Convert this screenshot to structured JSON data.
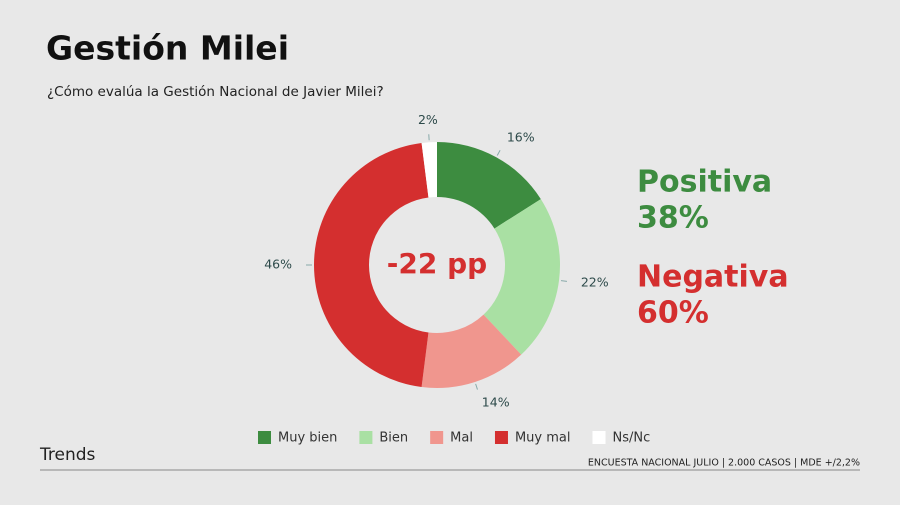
{
  "chart_data": {
    "type": "donut",
    "title": "Gestión Milei",
    "subtitle": "¿Cómo evalúa la Gestión Nacional de Javier Milei?",
    "categories": [
      "Muy bien",
      "Bien",
      "Mal",
      "Muy mal",
      "Ns/Nc"
    ],
    "values": [
      16,
      22,
      14,
      46,
      2
    ],
    "value_labels": [
      "16%",
      "22%",
      "14%",
      "46%",
      "2%"
    ],
    "colors": [
      "#3d8c40",
      "#a9e0a3",
      "#f0968e",
      "#d42f2f",
      "#ffffff"
    ],
    "center_label": "-22 pp",
    "annotations": [
      {
        "text": "Positiva",
        "value": "38%",
        "color": "#3d8c40"
      },
      {
        "text": "Negativa",
        "value": "60%",
        "color": "#d42f2f"
      }
    ],
    "brand": "Trends",
    "source": "ENCUESTA NACIONAL JULIO | 2.000 CASOS | MDE +/2,2%"
  }
}
